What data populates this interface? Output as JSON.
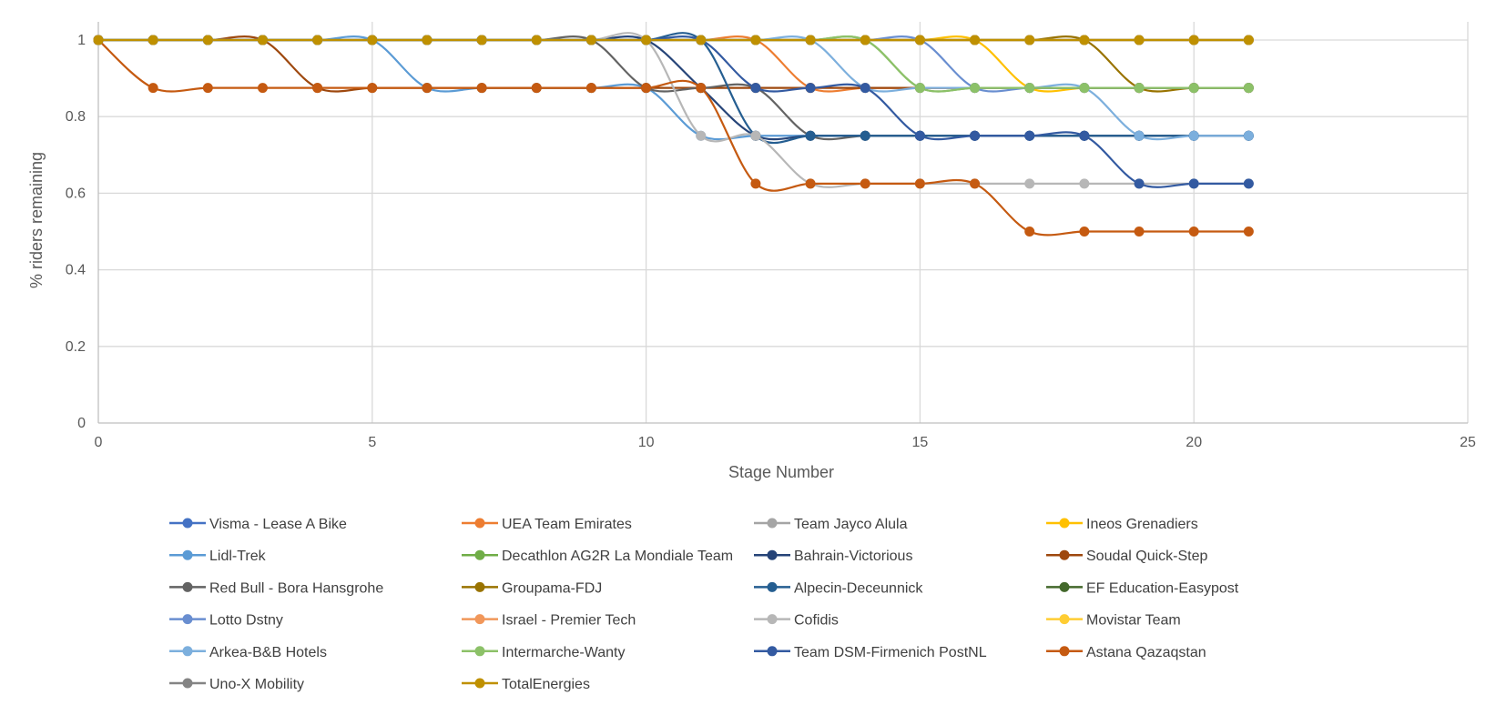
{
  "chart_data": {
    "type": "line",
    "title": "",
    "xlabel": "Stage Number",
    "ylabel": "% riders remaining",
    "xlim": [
      0,
      25
    ],
    "ylim": [
      0,
      1.0
    ],
    "x_ticks": [
      "0",
      "5",
      "10",
      "15",
      "20",
      "25"
    ],
    "y_ticks": [
      "0",
      "0.2",
      "0.4",
      "0.6",
      "0.8",
      "1"
    ],
    "grid": true,
    "legend_position": "bottom",
    "x": [
      0,
      1,
      2,
      3,
      4,
      5,
      6,
      7,
      8,
      9,
      10,
      11,
      12,
      13,
      14,
      15,
      16,
      17,
      18,
      19,
      20,
      21
    ],
    "series": [
      {
        "name": "Visma - Lease A Bike",
        "color": "#4472C4",
        "values": [
          1,
          1,
          1,
          1,
          1,
          1,
          1,
          1,
          1,
          1,
          1,
          1,
          1,
          1,
          1,
          1,
          1,
          1,
          1,
          1,
          1,
          1
        ]
      },
      {
        "name": "UEA Team Emirates",
        "color": "#ED7D31",
        "values": [
          1,
          1,
          1,
          1,
          1,
          1,
          1,
          1,
          1,
          1,
          1,
          1,
          1,
          0.875,
          0.875,
          0.875,
          0.875,
          0.875,
          0.875,
          0.875,
          0.875,
          0.875
        ]
      },
      {
        "name": "Team Jayco Alula",
        "color": "#A5A5A5",
        "values": [
          1,
          1,
          1,
          1,
          1,
          1,
          1,
          1,
          1,
          1,
          1,
          1,
          1,
          1,
          1,
          1,
          1,
          1,
          1,
          1,
          1,
          1
        ]
      },
      {
        "name": "Ineos Grenadiers",
        "color": "#FFC000",
        "values": [
          1,
          1,
          1,
          1,
          1,
          1,
          1,
          1,
          1,
          1,
          1,
          1,
          1,
          1,
          1,
          1,
          1,
          0.875,
          0.875,
          0.875,
          0.875,
          0.875
        ]
      },
      {
        "name": "Lidl-Trek",
        "color": "#5B9BD5",
        "values": [
          1,
          1,
          1,
          1,
          1,
          1,
          0.875,
          0.875,
          0.875,
          0.875,
          0.875,
          0.75,
          0.75,
          0.75,
          0.75,
          0.75,
          0.75,
          0.75,
          0.75,
          0.75,
          0.75,
          0.75
        ]
      },
      {
        "name": "Decathlon AG2R La Mondiale Team",
        "color": "#70AD47",
        "values": [
          1,
          1,
          1,
          1,
          1,
          1,
          1,
          1,
          1,
          1,
          1,
          1,
          1,
          1,
          1,
          0.875,
          0.875,
          0.875,
          0.875,
          0.875,
          0.875,
          0.875
        ]
      },
      {
        "name": "Bahrain-Victorious",
        "color": "#264478",
        "values": [
          1,
          1,
          1,
          1,
          1,
          1,
          1,
          1,
          1,
          1,
          1,
          0.875,
          0.75,
          0.75,
          0.75,
          0.75,
          0.75,
          0.75,
          0.75,
          0.75,
          0.75,
          0.75
        ]
      },
      {
        "name": "Soudal Quick-Step",
        "color": "#9E480E",
        "values": [
          1,
          1,
          1,
          1,
          0.875,
          0.875,
          0.875,
          0.875,
          0.875,
          0.875,
          0.875,
          0.875,
          0.875,
          0.875,
          0.875,
          0.875,
          0.875,
          0.875,
          0.875,
          0.875,
          0.875,
          0.875
        ]
      },
      {
        "name": "Red Bull - Bora Hansgrohe",
        "color": "#636363",
        "values": [
          1,
          1,
          1,
          1,
          1,
          1,
          1,
          1,
          1,
          1,
          0.875,
          0.875,
          0.875,
          0.75,
          0.75,
          0.75,
          0.75,
          0.75,
          0.75,
          0.75,
          0.75,
          0.75
        ]
      },
      {
        "name": "Groupama-FDJ",
        "color": "#997300",
        "values": [
          1,
          1,
          1,
          1,
          1,
          1,
          1,
          1,
          1,
          1,
          1,
          1,
          1,
          1,
          1,
          1,
          1,
          1,
          1,
          0.875,
          0.875,
          0.875
        ]
      },
      {
        "name": "Alpecin-Deceunnick",
        "color": "#255E91",
        "values": [
          1,
          1,
          1,
          1,
          1,
          1,
          1,
          1,
          1,
          1,
          1,
          1,
          0.75,
          0.75,
          0.75,
          0.75,
          0.75,
          0.75,
          0.75,
          0.75,
          0.75,
          0.75
        ]
      },
      {
        "name": "EF Education-Easypost",
        "color": "#43682B",
        "values": [
          1,
          1,
          1,
          1,
          1,
          1,
          1,
          1,
          1,
          1,
          1,
          1,
          1,
          1,
          1,
          1,
          1,
          1,
          1,
          1,
          1,
          1
        ]
      },
      {
        "name": "Lotto Dstny",
        "color": "#698ED0",
        "values": [
          1,
          1,
          1,
          1,
          1,
          1,
          1,
          1,
          1,
          1,
          1,
          1,
          1,
          1,
          1,
          1,
          0.875,
          0.875,
          0.875,
          0.875,
          0.875,
          0.875
        ]
      },
      {
        "name": "Israel - Premier Tech",
        "color": "#F1975A",
        "values": [
          1,
          1,
          1,
          1,
          1,
          1,
          1,
          1,
          1,
          1,
          1,
          1,
          1,
          1,
          1,
          1,
          1,
          1,
          1,
          1,
          1,
          1
        ]
      },
      {
        "name": "Cofidis",
        "color": "#B7B7B7",
        "values": [
          1,
          1,
          1,
          1,
          1,
          1,
          1,
          1,
          1,
          1,
          1,
          0.75,
          0.75,
          0.625,
          0.625,
          0.625,
          0.625,
          0.625,
          0.625,
          0.625,
          0.625,
          0.625
        ]
      },
      {
        "name": "Movistar Team",
        "color": "#FFCD33",
        "values": [
          1,
          1,
          1,
          1,
          1,
          1,
          1,
          1,
          1,
          1,
          1,
          1,
          1,
          1,
          1,
          1,
          1,
          1,
          1,
          1,
          1,
          1
        ]
      },
      {
        "name": "Arkea-B&B Hotels",
        "color": "#7CAFDD",
        "values": [
          1,
          1,
          1,
          1,
          1,
          1,
          1,
          1,
          1,
          1,
          1,
          1,
          1,
          1,
          0.875,
          0.875,
          0.875,
          0.875,
          0.875,
          0.75,
          0.75,
          0.75
        ]
      },
      {
        "name": "Intermarche-Wanty",
        "color": "#8CC168",
        "values": [
          1,
          1,
          1,
          1,
          1,
          1,
          1,
          1,
          1,
          1,
          1,
          1,
          1,
          1,
          1,
          0.875,
          0.875,
          0.875,
          0.875,
          0.875,
          0.875,
          0.875
        ]
      },
      {
        "name": "Team DSM-Firmenich PostNL",
        "color": "#335AA1",
        "values": [
          1,
          1,
          1,
          1,
          1,
          1,
          1,
          1,
          1,
          1,
          1,
          1,
          0.875,
          0.875,
          0.875,
          0.75,
          0.75,
          0.75,
          0.75,
          0.625,
          0.625,
          0.625
        ]
      },
      {
        "name": "Astana Qazaqstan",
        "color": "#C55A11",
        "values": [
          1,
          0.875,
          0.875,
          0.875,
          0.875,
          0.875,
          0.875,
          0.875,
          0.875,
          0.875,
          0.875,
          0.875,
          0.625,
          0.625,
          0.625,
          0.625,
          0.625,
          0.5,
          0.5,
          0.5,
          0.5,
          0.5
        ]
      },
      {
        "name": "Uno-X Mobility",
        "color": "#848484",
        "values": [
          1,
          1,
          1,
          1,
          1,
          1,
          1,
          1,
          1,
          1,
          1,
          1,
          1,
          1,
          1,
          1,
          1,
          1,
          1,
          1,
          1,
          1
        ]
      },
      {
        "name": "TotalEnergies",
        "color": "#BF9000",
        "values": [
          1,
          1,
          1,
          1,
          1,
          1,
          1,
          1,
          1,
          1,
          1,
          1,
          1,
          1,
          1,
          1,
          1,
          1,
          1,
          1,
          1,
          1
        ]
      }
    ]
  }
}
